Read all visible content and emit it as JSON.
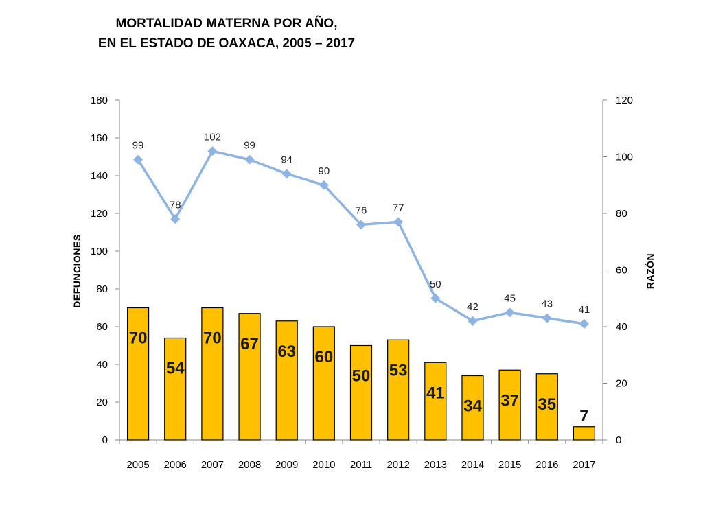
{
  "title_line1": "MORTALIDAD MATERNA POR AÑO,",
  "title_line2": "EN EL ESTADO DE OAXACA, 2005 – 2017",
  "chart_data": {
    "type": "bar",
    "categories": [
      "2005",
      "2006",
      "2007",
      "2008",
      "2009",
      "2010",
      "2011",
      "2012",
      "2013",
      "2014",
      "2015",
      "2016",
      "2017"
    ],
    "series": [
      {
        "type": "bar",
        "axis": "left",
        "values": [
          70,
          54,
          70,
          67,
          63,
          60,
          50,
          53,
          41,
          34,
          37,
          35,
          7
        ],
        "color": "#FFC000"
      },
      {
        "type": "line",
        "axis": "right",
        "values": [
          99,
          78,
          102,
          99,
          94,
          90,
          76,
          77,
          50,
          42,
          45,
          43,
          41
        ],
        "color": "#8EB4E3"
      }
    ],
    "ylabel": "DEFUNCIONES",
    "y2label": "RAZÓN",
    "ylim": [
      0,
      180
    ],
    "y2lim": [
      0,
      120
    ],
    "yticks": [
      0,
      20,
      40,
      60,
      80,
      100,
      120,
      140,
      160,
      180
    ],
    "y2ticks": [
      0,
      20,
      40,
      60,
      80,
      100,
      120
    ],
    "grid": false,
    "legend": "none"
  }
}
